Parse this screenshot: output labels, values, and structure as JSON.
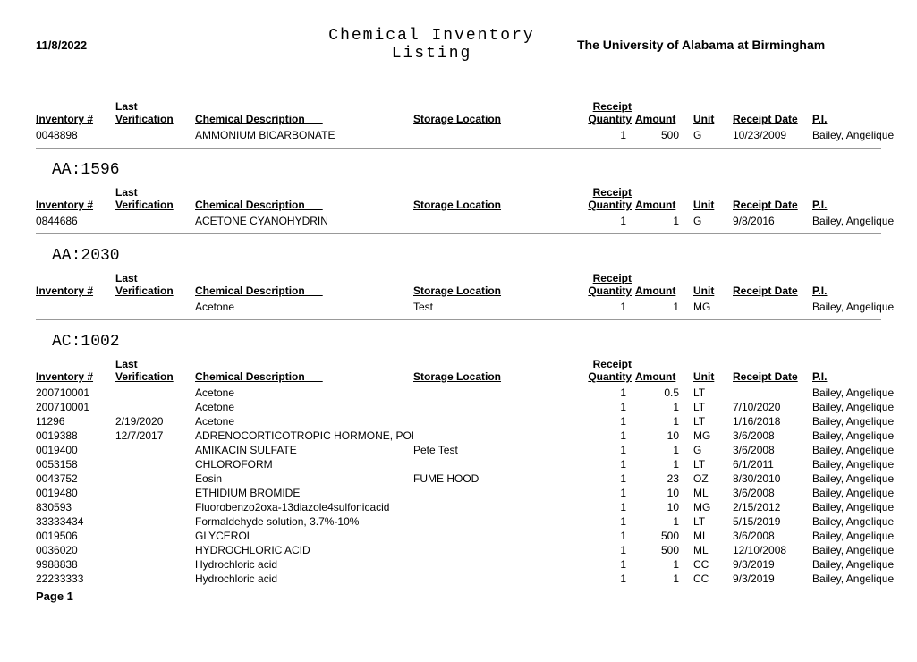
{
  "header": {
    "date": "11/8/2022",
    "title": "Chemical Inventory Listing",
    "org": "The University of Alabama at Birmingham"
  },
  "columns": {
    "inventory": "Inventory #",
    "verification_top": "Last",
    "verification_bot": "Verification",
    "description": "Chemical Description",
    "location": "Storage Location",
    "qty_top": "Receipt",
    "qty_bot": "Quantity",
    "amount": "Amount",
    "unit": "Unit",
    "receipt_date": "Receipt Date",
    "pi": "P.I."
  },
  "sections": [
    {
      "code": "",
      "rows": [
        {
          "inv": "0048898",
          "ver": "",
          "desc": "AMMONIUM BICARBONATE",
          "loc": "",
          "qty": "1",
          "amt": "500",
          "unit": "G",
          "date": "10/23/2009",
          "pi": "Bailey, Angelique"
        }
      ]
    },
    {
      "code": "AA:1596",
      "rows": [
        {
          "inv": "0844686",
          "ver": "",
          "desc": "ACETONE CYANOHYDRIN",
          "loc": "",
          "qty": "1",
          "amt": "1",
          "unit": "G",
          "date": "9/8/2016",
          "pi": "Bailey, Angelique"
        }
      ]
    },
    {
      "code": "AA:2030",
      "rows": [
        {
          "inv": "",
          "ver": "",
          "desc": "Acetone",
          "loc": "Test",
          "qty": "1",
          "amt": "1",
          "unit": "MG",
          "date": "",
          "pi": "Bailey, Angelique"
        }
      ]
    },
    {
      "code": "AC:1002",
      "rows": [
        {
          "inv": "200710001",
          "ver": "",
          "desc": "Acetone",
          "loc": "",
          "qty": "1",
          "amt": "0.5",
          "unit": "LT",
          "date": "",
          "pi": "Bailey, Angelique"
        },
        {
          "inv": "200710001",
          "ver": "",
          "desc": "Acetone",
          "loc": "",
          "qty": "1",
          "amt": "1",
          "unit": "LT",
          "date": "7/10/2020",
          "pi": "Bailey, Angelique"
        },
        {
          "inv": "11296",
          "ver": "2/19/2020",
          "desc": "Acetone",
          "loc": "",
          "qty": "1",
          "amt": "1",
          "unit": "LT",
          "date": "1/16/2018",
          "pi": "Bailey, Angelique"
        },
        {
          "inv": "0019388",
          "ver": "12/7/2017",
          "desc": "ADRENOCORTICOTROPIC HORMONE, PORCINE",
          "loc": "",
          "qty": "1",
          "amt": "10",
          "unit": "MG",
          "date": "3/6/2008",
          "pi": "Bailey, Angelique"
        },
        {
          "inv": "0019400",
          "ver": "",
          "desc": "AMIKACIN SULFATE",
          "loc": "Pete Test",
          "qty": "1",
          "amt": "1",
          "unit": "G",
          "date": "3/6/2008",
          "pi": "Bailey, Angelique"
        },
        {
          "inv": "0053158",
          "ver": "",
          "desc": "CHLOROFORM",
          "loc": "",
          "qty": "1",
          "amt": "1",
          "unit": "LT",
          "date": "6/1/2011",
          "pi": "Bailey, Angelique"
        },
        {
          "inv": "0043752",
          "ver": "",
          "desc": "Eosin",
          "loc": "FUME HOOD",
          "qty": "1",
          "amt": "23",
          "unit": "OZ",
          "date": "8/30/2010",
          "pi": "Bailey, Angelique"
        },
        {
          "inv": "0019480",
          "ver": "",
          "desc": "ETHIDIUM BROMIDE",
          "loc": "",
          "qty": "1",
          "amt": "10",
          "unit": "ML",
          "date": "3/6/2008",
          "pi": "Bailey, Angelique"
        },
        {
          "inv": "830593",
          "ver": "",
          "desc": "Fluorobenzo2oxa-13diazole4sulfonicacid",
          "loc": "",
          "qty": "1",
          "amt": "10",
          "unit": "MG",
          "date": "2/15/2012",
          "pi": "Bailey, Angelique"
        },
        {
          "inv": "33333434",
          "ver": "",
          "desc": "Formaldehyde solution, 3.7%-10%",
          "loc": "",
          "qty": "1",
          "amt": "1",
          "unit": "LT",
          "date": "5/15/2019",
          "pi": "Bailey, Angelique"
        },
        {
          "inv": "0019506",
          "ver": "",
          "desc": "GLYCEROL",
          "loc": "",
          "qty": "1",
          "amt": "500",
          "unit": "ML",
          "date": "3/6/2008",
          "pi": "Bailey, Angelique"
        },
        {
          "inv": "0036020",
          "ver": "",
          "desc": "HYDROCHLORIC ACID",
          "loc": "",
          "qty": "1",
          "amt": "500",
          "unit": "ML",
          "date": "12/10/2008",
          "pi": "Bailey, Angelique"
        },
        {
          "inv": "9988838",
          "ver": "",
          "desc": "Hydrochloric acid",
          "loc": "",
          "qty": "1",
          "amt": "1",
          "unit": "CC",
          "date": "9/3/2019",
          "pi": "Bailey, Angelique"
        },
        {
          "inv": "22233333",
          "ver": "",
          "desc": "Hydrochloric acid",
          "loc": "",
          "qty": "1",
          "amt": "1",
          "unit": "CC",
          "date": "9/3/2019",
          "pi": "Bailey, Angelique"
        }
      ]
    }
  ],
  "footer": {
    "page": "Page 1"
  }
}
